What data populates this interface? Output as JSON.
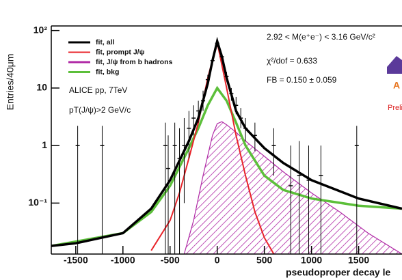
{
  "chart_data": {
    "type": "line",
    "y_label": "Entries/40μm",
    "x_label": "pseudoproper decay le",
    "annotations": [
      "2.92 < M(e⁺e⁻) < 3.16 GeV/c²",
      "χ²/dof = 0.633",
      "FB = 0.150 ± 0.059",
      "ALICE pp, 7TeV",
      "pT(J/ψ)>2 GeV/c",
      "A",
      "Preli"
    ],
    "xlim": [
      -1760,
      1960
    ],
    "ylim": [
      0.013,
      120
    ],
    "log_y": true,
    "xticks": [
      -1500,
      -1000,
      -500,
      0,
      500,
      1000,
      1500
    ],
    "yticks": [
      {
        "value": 100,
        "label": "10²"
      },
      {
        "value": 10,
        "label": "10"
      },
      {
        "value": 1,
        "label": "1"
      },
      {
        "value": 0.1,
        "label": "10⁻¹"
      }
    ],
    "legend": "top-left",
    "series": [
      {
        "name": "fit, all",
        "color": "#000000",
        "x": [
          -1760,
          -1500,
          -1000,
          -700,
          -500,
          -300,
          -200,
          -100,
          -50,
          0,
          50,
          100,
          200,
          300,
          500,
          700,
          1000,
          1500,
          1960
        ],
        "values": [
          0.018,
          0.02,
          0.03,
          0.08,
          0.25,
          1.2,
          3,
          12,
          30,
          65,
          35,
          15,
          4,
          2,
          0.9,
          0.5,
          0.25,
          0.12,
          0.08
        ]
      },
      {
        "name": "fit, prompt J/ψ",
        "color": "#e8242a",
        "x": [
          -700,
          -500,
          -400,
          -300,
          -200,
          -100,
          0,
          100,
          200,
          300,
          400,
          500,
          600
        ],
        "values": [
          0.015,
          0.05,
          0.15,
          0.6,
          2.5,
          15,
          62,
          10,
          1.5,
          0.3,
          0.07,
          0.025,
          0.013
        ]
      },
      {
        "name": "fit, J/ψ from b hadrons",
        "color": "#b02aa6",
        "hatched": true,
        "x": [
          -350,
          -250,
          -150,
          -50,
          0,
          50,
          100,
          200,
          300,
          500,
          700,
          1000,
          1300,
          1600,
          1960
        ],
        "values": [
          0.013,
          0.05,
          0.3,
          1.5,
          2.4,
          2.6,
          2.3,
          1.7,
          1.2,
          0.65,
          0.35,
          0.15,
          0.07,
          0.03,
          0.013
        ]
      },
      {
        "name": "fit, bkg",
        "color": "#5cbf3a",
        "x": [
          -1760,
          -1000,
          -700,
          -500,
          -300,
          -200,
          -100,
          0,
          100,
          200,
          300,
          500,
          700,
          1000,
          1500,
          1960
        ],
        "values": [
          0.018,
          0.03,
          0.07,
          0.2,
          0.9,
          2,
          5,
          10,
          6,
          2.5,
          1,
          0.3,
          0.17,
          0.12,
          0.09,
          0.08
        ]
      }
    ],
    "points": {
      "color": "#000000",
      "x": [
        -1480,
        -1220,
        -550,
        -520,
        -450,
        -400,
        -350,
        -300,
        -250,
        -200,
        -150,
        -100,
        -50,
        0,
        50,
        100,
        150,
        200,
        250,
        300,
        400,
        600,
        780,
        870,
        970,
        1100,
        1480
      ],
      "values": [
        1,
        1,
        1,
        0.4,
        1,
        0.6,
        1,
        2,
        3,
        4,
        6,
        14,
        30,
        60,
        35,
        16,
        8,
        5,
        3,
        2,
        1.5,
        1,
        0.2,
        0.3,
        0.25,
        0.3,
        1
      ],
      "low": [
        0.013,
        0.013,
        0.013,
        0.013,
        0.013,
        0.013,
        0.1,
        0.6,
        1.5,
        2.5,
        4,
        11,
        25,
        52,
        30,
        13,
        6,
        3.5,
        2,
        1.2,
        0.8,
        0.3,
        0.013,
        0.013,
        0.013,
        0.013,
        0.013
      ],
      "high": [
        2.2,
        2.2,
        2.5,
        1.5,
        2.5,
        2,
        3,
        4,
        5,
        6,
        9,
        17,
        35,
        68,
        40,
        19,
        10,
        7,
        4.5,
        3,
        2.5,
        2,
        1,
        1.2,
        1,
        1,
        2.2
      ]
    }
  }
}
